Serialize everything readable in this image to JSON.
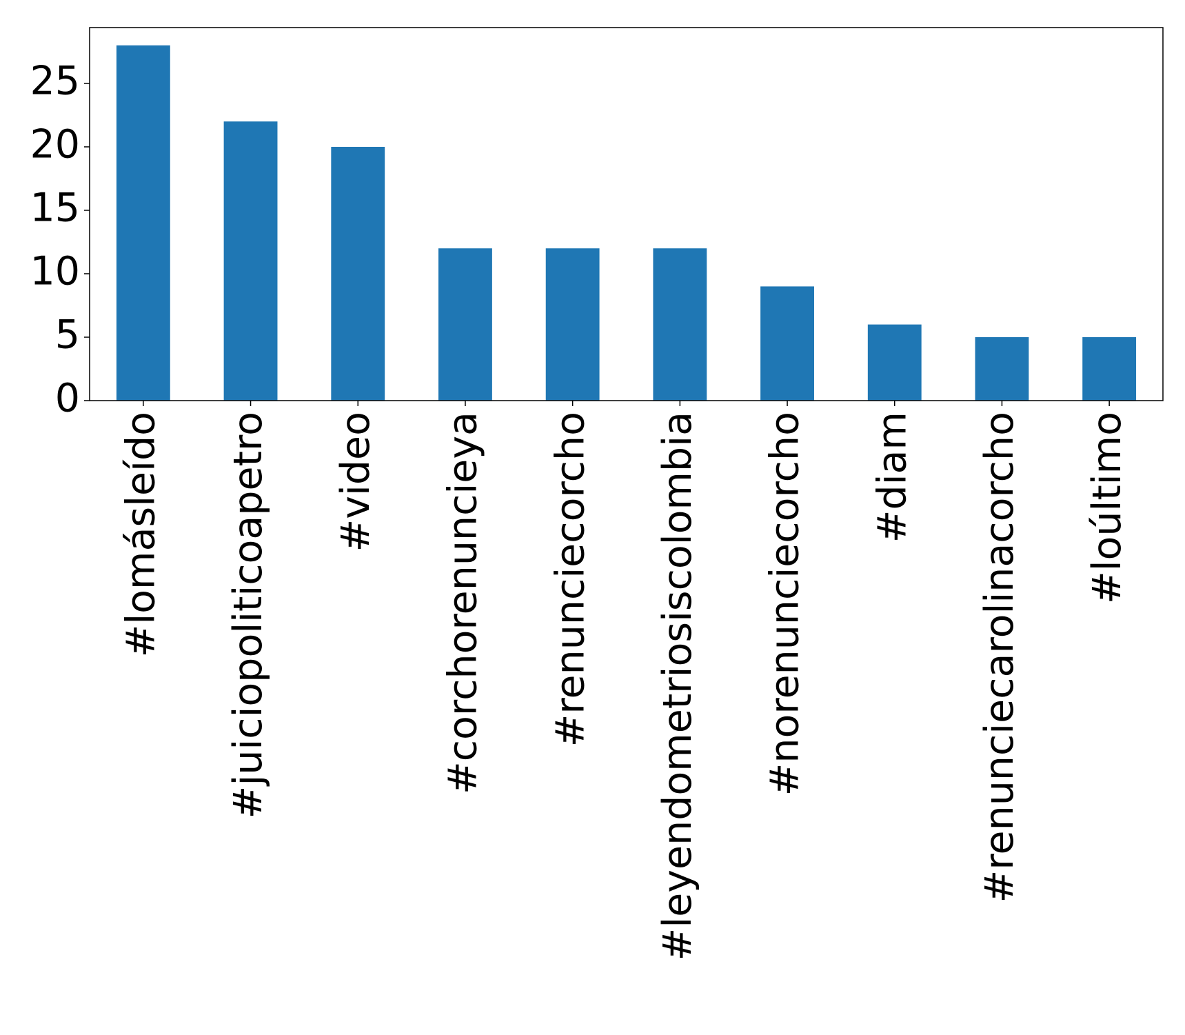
{
  "chart_data": {
    "type": "bar",
    "categories": [
      "#lomásleído",
      "#juiciopoliticoapetro",
      "#video",
      "#corchorenuncieya",
      "#renunciecorcho",
      "#leyendometriosiscolombia",
      "#norenunciecorcho",
      "#diam",
      "#renunciecarolinacorcho",
      "#loúltimo"
    ],
    "values": [
      28,
      22,
      20,
      12,
      12,
      12,
      9,
      6,
      5,
      5
    ],
    "color": "#1f77b4",
    "ylim": [
      0,
      29.4
    ],
    "yticks": [
      0,
      5,
      10,
      15,
      20,
      25
    ],
    "grid": false
  }
}
